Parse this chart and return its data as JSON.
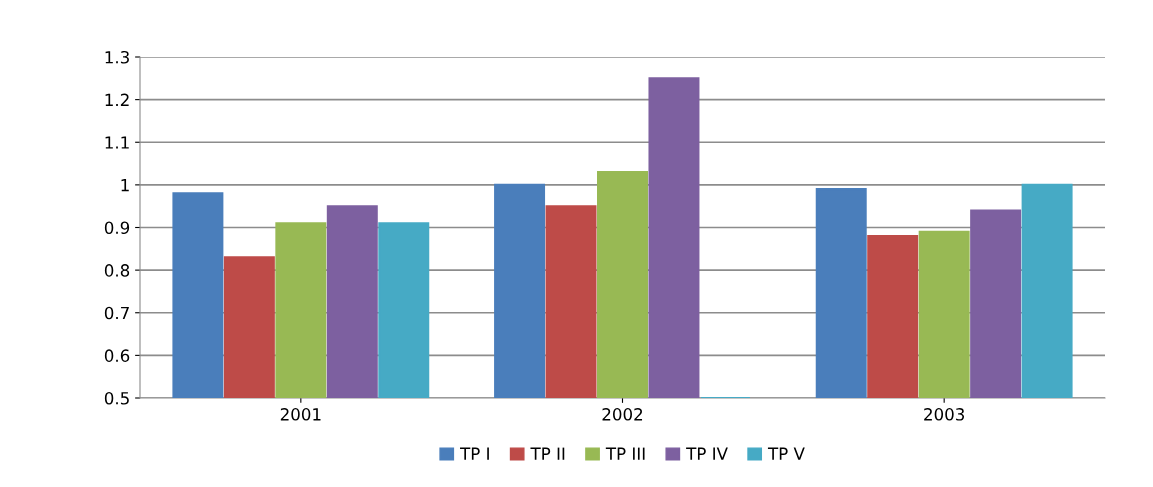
{
  "chart_data": {
    "type": "bar",
    "categories": [
      "2001",
      "2002",
      "2003"
    ],
    "series": [
      {
        "name": "TP I",
        "color": "#4a7ebb",
        "values": [
          0.98,
          1.0,
          0.99
        ]
      },
      {
        "name": "TP II",
        "color": "#be4b48",
        "values": [
          0.83,
          0.95,
          0.88
        ]
      },
      {
        "name": "TP III",
        "color": "#98b954",
        "values": [
          0.91,
          1.03,
          0.89
        ]
      },
      {
        "name": "TP IV",
        "color": "#7d60a0",
        "values": [
          0.95,
          1.25,
          0.94
        ]
      },
      {
        "name": "TP V",
        "color": "#46aac5",
        "values": [
          0.91,
          0.5,
          1.0
        ]
      }
    ],
    "ylim": [
      0.5,
      1.3
    ],
    "yticks": [
      0.5,
      0.6,
      0.7,
      0.8,
      0.9,
      1,
      1.1,
      1.2,
      1.3
    ],
    "grid": "y",
    "legend": "bottom"
  }
}
